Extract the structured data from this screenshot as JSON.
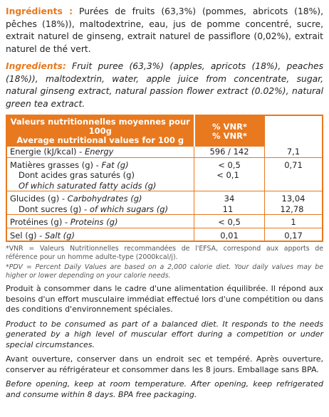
{
  "ingredients_fr": {
    "label": "Ingrédients :",
    "text": "Purées de fruits (63,3%) (pommes, abricots (18%), pêches (18%)), maltodextrine, eau, jus de pomme concentré, sucre, extrait naturel de ginseng, extrait naturel de passiflore (0,02%), extrait naturel de thé vert."
  },
  "ingredients_en": {
    "label": "Ingredients:",
    "text": "Fruit puree (63,3%) (apples, apricots (18%), peaches (18%)), maltodextrin, water, apple juice from concentrate, sugar, natural ginseng extract, natural passion flower extract (0.02%), natural green tea extract."
  },
  "table": {
    "header": {
      "nutrition_fr": "Valeurs nutritionnelles moyennes pour 100g",
      "nutrition_en": "Average nutritional values for 100 g",
      "vnr_fr": "% VNR*",
      "vnr_en": "% VNR*"
    },
    "rows": [
      {
        "label_fr": "Energie (kJ/kcal) -",
        "label_en": "Energy",
        "value": "596 / 142",
        "vnr": "7,1"
      },
      {
        "label_fr": "Matières grasses (g) -",
        "label_en": "Fat (g)",
        "value": "< 0,5",
        "vnr": "0,71"
      },
      {
        "label_fr": "Dont acides gras saturés (g)",
        "value": "< 0,1"
      },
      {
        "label_en": "Of which saturated fatty acids (g)"
      },
      {
        "label_fr": "Glucides (g) -",
        "label_en": "Carbohydrates (g)",
        "value": "34",
        "vnr": "13,04"
      },
      {
        "label_fr": "Dont sucres (g) -",
        "label_en": "of which sugars (g)",
        "value": "11",
        "vnr": "12,78"
      },
      {
        "label_fr": "Protéines (g) -",
        "label_en": "Proteins (g)",
        "value": "< 0,5",
        "vnr": "1"
      },
      {
        "label_fr": "Sel (g) -",
        "label_en": "Salt (g)",
        "value": "0,01",
        "vnr": "0,17"
      }
    ]
  },
  "notes": {
    "vnr_fr": "*VNR = Valeurs Nutritionnelles recommandées de l'EFSA, correspond aux apports de référence pour un homme adulte-type (2000kcal/j).",
    "pdv_en": "*PDV = Percent Daily Values are based on a 2,000 calorie diet. Your daily values may be higher or lower depending on your calorie needs."
  },
  "paragraphs": [
    "Produit à consommer dans le cadre d'une alimentation équilibrée. Il répond aux besoins d'un effort musculaire immédiat effectué lors d'une compétition ou dans des conditions d'environnement spéciales.",
    "Product to be consumed as part of a balanced diet. It responds to the needs generated by a high level of muscular effort during a competition or under special circumstances.",
    "Avant ouverture, conserver dans un endroit sec et tempéré. Après ouverture, conserver au réfrigérateur et consommer dans les 8 jours. Emballage sans BPA.",
    "Before opening, keep at room temperature. After opening, keep refrigerated and consume within 8 days. BPA free packaging."
  ]
}
